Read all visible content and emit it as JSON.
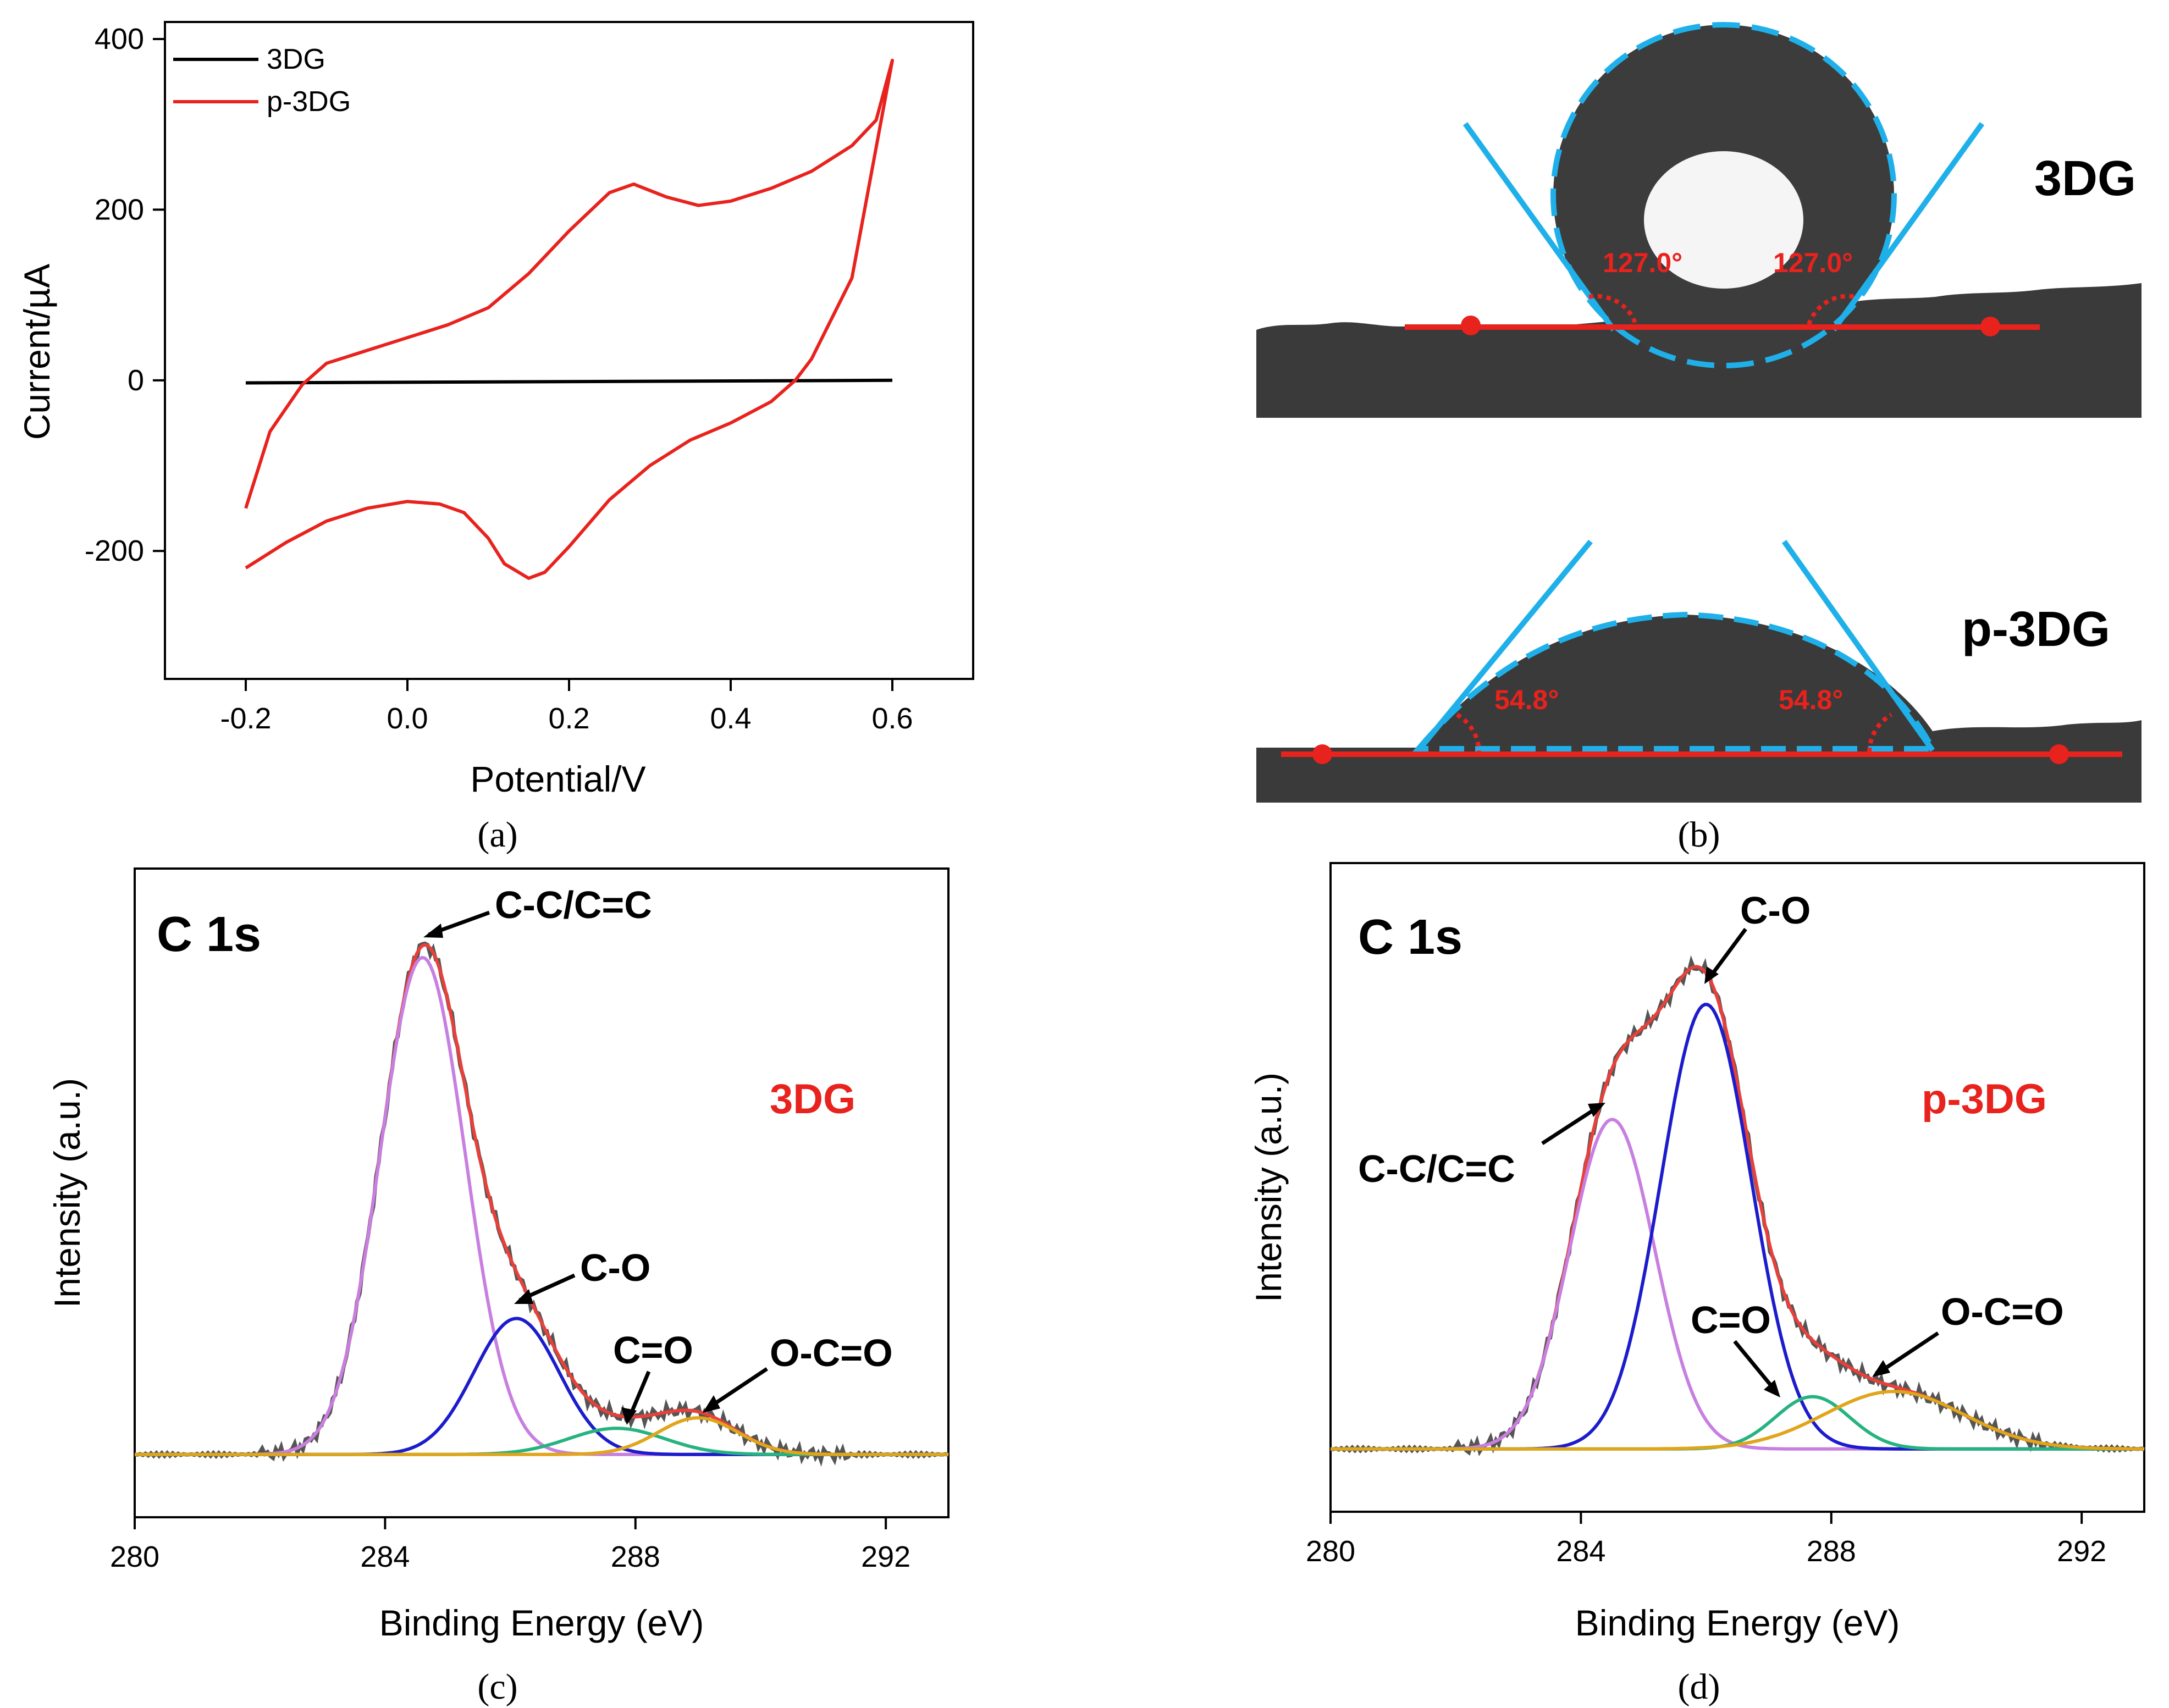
{
  "chart_data": [
    {
      "panel": "a",
      "caption": "(a)",
      "type": "line",
      "title": "",
      "xlabel": "Potential/V",
      "ylabel": "Current/µA",
      "xlim": [
        -0.3,
        0.7
      ],
      "ylim": [
        -350,
        420
      ],
      "xticks": [
        -0.2,
        0.0,
        0.2,
        0.4,
        0.6
      ],
      "xtick_labels": [
        "-0.2",
        "0.0",
        "0.2",
        "0.4",
        "0.6"
      ],
      "yticks": [
        -200,
        0,
        200,
        400
      ],
      "ytick_labels": [
        "-200",
        "0",
        "200",
        "400"
      ],
      "legend": "top-left",
      "series": [
        {
          "name": "3DG",
          "color": "#000000",
          "x": [
            -0.2,
            0.6
          ],
          "y": [
            -3,
            0
          ]
        },
        {
          "name": "p-3DG",
          "color": "#e8221d",
          "x": [
            -0.2,
            -0.17,
            -0.13,
            -0.1,
            -0.05,
            0.0,
            0.05,
            0.1,
            0.15,
            0.2,
            0.25,
            0.28,
            0.32,
            0.36,
            0.4,
            0.45,
            0.5,
            0.55,
            0.58,
            0.6,
            0.6,
            0.55,
            0.5,
            0.48,
            0.45,
            0.4,
            0.35,
            0.3,
            0.25,
            0.2,
            0.17,
            0.15,
            0.12,
            0.1,
            0.07,
            0.04,
            0.0,
            -0.05,
            -0.1,
            -0.15,
            -0.2
          ],
          "y": [
            -150,
            -60,
            -5,
            20,
            35,
            50,
            65,
            85,
            125,
            175,
            220,
            230,
            215,
            205,
            210,
            225,
            245,
            275,
            305,
            375,
            375,
            120,
            25,
            0,
            -25,
            -50,
            -70,
            -100,
            -140,
            -195,
            -225,
            -232,
            -215,
            -185,
            -155,
            -145,
            -142,
            -150,
            -165,
            -190,
            -220
          ]
        }
      ]
    },
    {
      "panel": "b",
      "caption": "(b)",
      "type": "image",
      "images": [
        {
          "label": "3DG",
          "angle_left": "127.0°",
          "angle_right": "127.0°"
        },
        {
          "label": "p-3DG",
          "angle_left": "54.8°",
          "angle_right": "54.8°"
        }
      ]
    },
    {
      "panel": "c",
      "caption": "(c)",
      "type": "line",
      "title": "C 1s",
      "sample_label": "3DG",
      "xlabel": "Binding Energy (eV)",
      "ylabel": "Intensity (a.u.)",
      "xlim": [
        280,
        293
      ],
      "xticks": [
        280,
        284,
        288,
        292
      ],
      "xtick_labels": [
        "280",
        "284",
        "288",
        "292"
      ],
      "ylim": [
        -0.12,
        1.12
      ],
      "peaks": [
        {
          "name": "C-C/C=C",
          "center": 284.6,
          "fwhm": 1.6,
          "height": 0.95,
          "color": "#c77fe0"
        },
        {
          "name": "C-O",
          "center": 286.1,
          "fwhm": 1.6,
          "height": 0.26,
          "color": "#1c1ccc"
        },
        {
          "name": "C=O",
          "center": 287.7,
          "fwhm": 1.8,
          "height": 0.05,
          "color": "#26b37f"
        },
        {
          "name": "O-C=O",
          "center": 289.0,
          "fwhm": 1.5,
          "height": 0.07,
          "color": "#e0a51a"
        }
      ],
      "envelope_color": "#e8403a",
      "raw_color": "#555555",
      "annotations": [
        "C-C/C=C",
        "C-O",
        "C=O",
        "O-C=O"
      ]
    },
    {
      "panel": "d",
      "caption": "(d)",
      "type": "line",
      "title": "C 1s",
      "sample_label": "p-3DG",
      "xlabel": "Binding Energy (eV)",
      "ylabel": "Intensity (a.u.)",
      "xlim": [
        280,
        293
      ],
      "xticks": [
        280,
        284,
        288,
        292
      ],
      "xtick_labels": [
        "280",
        "284",
        "288",
        "292"
      ],
      "ylim": [
        -0.12,
        1.12
      ],
      "peaks": [
        {
          "name": "C-C/C=C",
          "center": 284.5,
          "fwhm": 1.6,
          "height": 0.63,
          "color": "#c77fe0"
        },
        {
          "name": "C-O",
          "center": 286.0,
          "fwhm": 1.7,
          "height": 0.85,
          "color": "#1c1ccc"
        },
        {
          "name": "C=O",
          "center": 287.7,
          "fwhm": 1.4,
          "height": 0.1,
          "color": "#26b37f"
        },
        {
          "name": "O-C=O",
          "center": 289.0,
          "fwhm": 2.6,
          "height": 0.11,
          "color": "#e0a51a"
        }
      ],
      "envelope_color": "#e8403a",
      "raw_color": "#555555",
      "annotations": [
        "C-O",
        "C-C/C=C",
        "C=O",
        "O-C=O"
      ]
    }
  ]
}
